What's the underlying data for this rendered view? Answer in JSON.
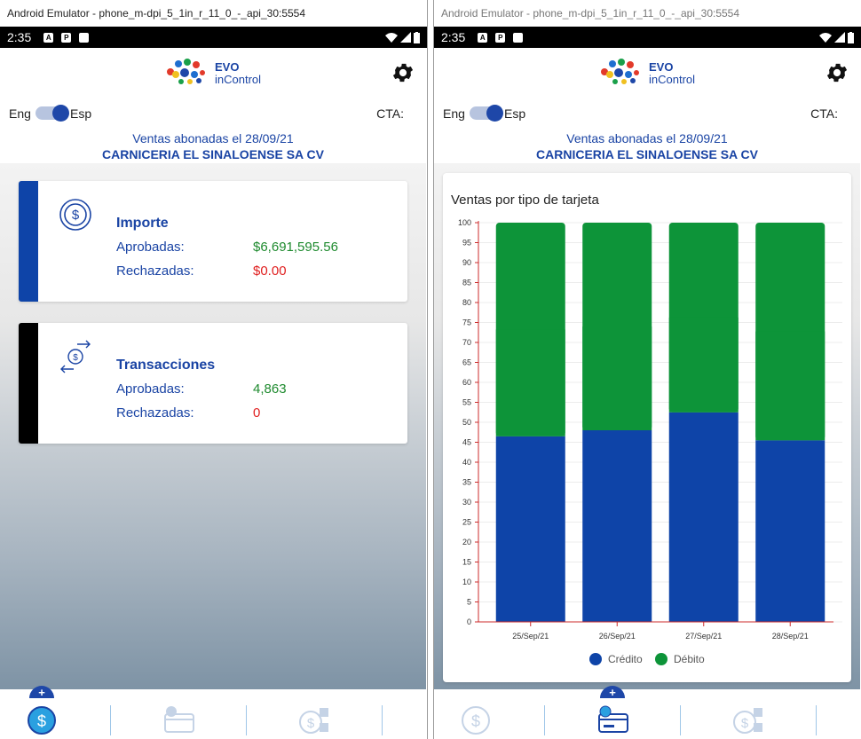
{
  "windows": [
    {
      "title": "Android Emulator - phone_m-dpi_5_1in_r_11_0_-_api_30:5554"
    },
    {
      "title": "Android Emulator - phone_m-dpi_5_1in_r_11_0_-_api_30:5554"
    }
  ],
  "status_bar": {
    "time": "2:35"
  },
  "brand": {
    "line1": "EVO",
    "line2": "inControl"
  },
  "lang": {
    "eng": "Eng",
    "esp": "Esp"
  },
  "cta_label": "CTA:",
  "header": {
    "date_line": "Ventas abonadas el  28/09/21",
    "merchant": "CARNICERIA EL SINALOENSE SA CV"
  },
  "cards": {
    "importe": {
      "title": "Importe",
      "approved_label": "Aprobadas:",
      "approved_value": "$6,691,595.56",
      "rejected_label": "Rechazadas:",
      "rejected_value": "$0.00",
      "icon": "dollar-coin-icon"
    },
    "transacciones": {
      "title": "Transacciones",
      "approved_label": "Aprobadas:",
      "approved_value": "4,863",
      "rejected_label": "Rechazadas:",
      "rejected_value": "0",
      "icon": "exchange-coin-icon"
    }
  },
  "nav": {
    "plus": "+",
    "items": [
      "dollar-icon",
      "card-icon",
      "dollar-check-icon"
    ]
  },
  "colors": {
    "brand_blue": "#1a44a4",
    "credit": "#0e44a8",
    "debit": "#0d9439",
    "approved": "#1e8a2e",
    "rejected": "#e02020",
    "axis": "#cc2b2b"
  },
  "chart_data": {
    "type": "bar",
    "stacked": true,
    "title": "Ventas por tipo de tarjeta",
    "categories": [
      "25/Sep/21",
      "26/Sep/21",
      "27/Sep/21",
      "28/Sep/21"
    ],
    "series": [
      {
        "name": "Crédito",
        "values": [
          46.5,
          48,
          52.5,
          45.5
        ]
      },
      {
        "name": "Débito",
        "values": [
          53.5,
          52,
          47.5,
          54.5
        ]
      }
    ],
    "ylim": [
      0,
      100
    ],
    "yticks": [
      0,
      5,
      10,
      15,
      20,
      25,
      30,
      35,
      40,
      45,
      50,
      55,
      60,
      65,
      70,
      75,
      80,
      85,
      90,
      95,
      100
    ],
    "grid": true,
    "legend": "bottom"
  }
}
